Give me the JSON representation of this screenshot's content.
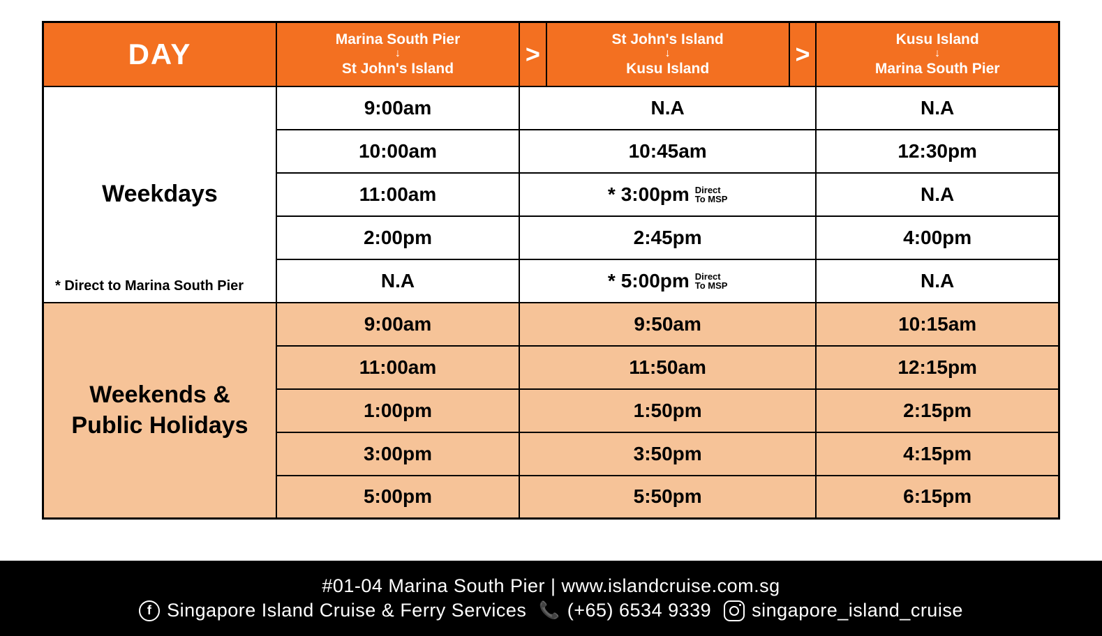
{
  "colors": {
    "orange": "#f37021",
    "peach": "#f6c398",
    "black": "#000000",
    "white": "#ffffff"
  },
  "header": {
    "day_label": "DAY",
    "routes": [
      {
        "from": "Marina South Pier",
        "to": "St John's Island"
      },
      {
        "from": "St John's Island",
        "to": "Kusu Island"
      },
      {
        "from": "Kusu Island",
        "to": "Marina South Pier"
      }
    ],
    "chevron_label": ">"
  },
  "sections": [
    {
      "label": "Weekdays",
      "footnote": "* Direct to Marina South Pier",
      "direct_note": "Direct\nTo MSP",
      "bg": "white",
      "rows": [
        {
          "c1": "9:00am",
          "c2": "N.A",
          "c2_star": false,
          "c2_direct": false,
          "c3": "N.A"
        },
        {
          "c1": "10:00am",
          "c2": "10:45am",
          "c2_star": false,
          "c2_direct": false,
          "c3": "12:30pm"
        },
        {
          "c1": "11:00am",
          "c2": "3:00pm",
          "c2_star": true,
          "c2_direct": true,
          "c3": "N.A"
        },
        {
          "c1": "2:00pm",
          "c2": "2:45pm",
          "c2_star": false,
          "c2_direct": false,
          "c3": "4:00pm"
        },
        {
          "c1": "N.A",
          "c2": "5:00pm",
          "c2_star": true,
          "c2_direct": true,
          "c3": "N.A"
        }
      ]
    },
    {
      "label": "Weekends &\nPublic Holidays",
      "footnote": "",
      "direct_note": "",
      "bg": "peach",
      "rows": [
        {
          "c1": "9:00am",
          "c2": "9:50am",
          "c2_star": false,
          "c2_direct": false,
          "c3": "10:15am"
        },
        {
          "c1": "11:00am",
          "c2": "11:50am",
          "c2_star": false,
          "c2_direct": false,
          "c3": "12:15pm"
        },
        {
          "c1": "1:00pm",
          "c2": "1:50pm",
          "c2_star": false,
          "c2_direct": false,
          "c3": "2:15pm"
        },
        {
          "c1": "3:00pm",
          "c2": "3:50pm",
          "c2_star": false,
          "c2_direct": false,
          "c3": "4:15pm"
        },
        {
          "c1": "5:00pm",
          "c2": "5:50pm",
          "c2_star": false,
          "c2_direct": false,
          "c3": "6:15pm"
        }
      ]
    }
  ],
  "footer": {
    "address": "#01-04 Marina South Pier",
    "website": "www.islandcruise.com.sg",
    "separator": " | ",
    "facebook": "Singapore Island Cruise & Ferry Services",
    "phone": "(+65) 6534 9339",
    "instagram": "singapore_island_cruise"
  }
}
